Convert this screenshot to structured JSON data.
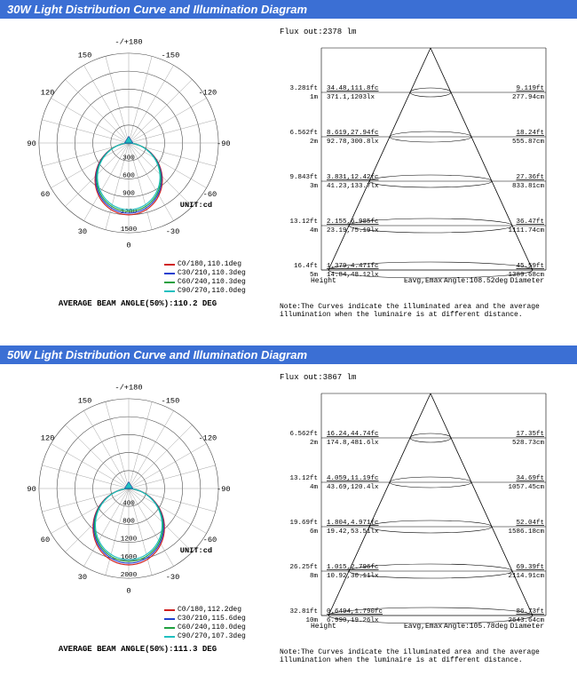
{
  "sections": [
    {
      "title": "30W Light Distribution Curve and Illumination Diagram",
      "polar": {
        "unit_label": "UNIT:cd",
        "top_label": "-/+180",
        "angle_labels": [
          "150",
          "-150",
          "120",
          "-120",
          "90",
          "-90",
          "60",
          "-60",
          "30",
          "-30",
          "0"
        ],
        "radial_ticks": [
          "300",
          "600",
          "900",
          "1200",
          "1500"
        ],
        "radial_max": 1500,
        "legend": [
          {
            "color": "#d02020",
            "label": "C0/180,110.1deg"
          },
          {
            "color": "#2040d0",
            "label": "C30/210,110.3deg"
          },
          {
            "color": "#20a040",
            "label": "C60/240,110.3deg"
          },
          {
            "color": "#20c0c0",
            "label": "C90/270,110.0deg"
          }
        ],
        "beam_angle": "AVERAGE BEAM ANGLE(50%):110.2 DEG",
        "lobe_peak": 1200,
        "lobe_width_deg": 110,
        "grid_color": "#888",
        "circle_color": "#444"
      },
      "illum": {
        "flux": "Flux out:2378 lm",
        "angle_label": "Angle:108.52deg",
        "axis_h": "Height",
        "axis_e": "Eavg,Emax",
        "axis_d": "Diameter",
        "rows": [
          {
            "hft": "3.281ft",
            "hm": "1m",
            "fc": "34.48,111.8fc",
            "lx": "371.1,1203lx",
            "dft": "9.119ft",
            "dcm": "277.94cm",
            "rel": 0.2
          },
          {
            "hft": "6.562ft",
            "hm": "2m",
            "fc": "8.619,27.94fc",
            "lx": "92.78,300.8lx",
            "dft": "18.24ft",
            "dcm": "555.87cm",
            "rel": 0.4
          },
          {
            "hft": "9.843ft",
            "hm": "3m",
            "fc": "3.831,12.42fc",
            "lx": "41.23,133.7lx",
            "dft": "27.36ft",
            "dcm": "833.81cm",
            "rel": 0.6
          },
          {
            "hft": "13.12ft",
            "hm": "4m",
            "fc": "2.155,6.985fc",
            "lx": "23.19,75.19lx",
            "dft": "36.47ft",
            "dcm": "1111.74cm",
            "rel": 0.8
          },
          {
            "hft": "16.4ft",
            "hm": "5m",
            "fc": "1.379,4.471fc",
            "lx": "14.84,48.12lx",
            "dft": "45.59ft",
            "dcm": "1389.68cm",
            "rel": 1.0
          }
        ],
        "note": "Note:The Curves indicate the illuminated area and the average illumination when the luminaire is at different distance."
      }
    },
    {
      "title": "50W Light Distribution Curve and Illumination Diagram",
      "polar": {
        "unit_label": "UNIT:cd",
        "top_label": "-/+180",
        "angle_labels": [
          "150",
          "-150",
          "120",
          "-120",
          "90",
          "-90",
          "60",
          "-60",
          "30",
          "-30",
          "0"
        ],
        "radial_ticks": [
          "400",
          "800",
          "1200",
          "1600",
          "2000"
        ],
        "radial_max": 2000,
        "legend": [
          {
            "color": "#d02020",
            "label": "C0/180,112.2deg"
          },
          {
            "color": "#2040d0",
            "label": "C30/210,115.6deg"
          },
          {
            "color": "#20a040",
            "label": "C60/240,110.0deg"
          },
          {
            "color": "#20c0c0",
            "label": "C90/270,107.3deg"
          }
        ],
        "beam_angle": "AVERAGE BEAM ANGLE(50%):111.3 DEG",
        "lobe_peak": 1700,
        "lobe_width_deg": 111,
        "grid_color": "#888",
        "circle_color": "#444"
      },
      "illum": {
        "flux": "Flux out:3867 lm",
        "angle_label": "Angle:105.78deg",
        "axis_h": "Height",
        "axis_e": "Eavg,Emax",
        "axis_d": "Diameter",
        "rows": [
          {
            "hft": "6.562ft",
            "hm": "2m",
            "fc": "16.24,44.74fc",
            "lx": "174.8,481.6lx",
            "dft": "17.35ft",
            "dcm": "528.73cm",
            "rel": 0.2
          },
          {
            "hft": "13.12ft",
            "hm": "4m",
            "fc": "4.059,11.19fc",
            "lx": "43.69,120.4lx",
            "dft": "34.69ft",
            "dcm": "1057.45cm",
            "rel": 0.4
          },
          {
            "hft": "19.69ft",
            "hm": "6m",
            "fc": "1.804,4.971fc",
            "lx": "19.42,53.51lx",
            "dft": "52.04ft",
            "dcm": "1586.18cm",
            "rel": 0.6
          },
          {
            "hft": "26.25ft",
            "hm": "8m",
            "fc": "1.015,2.796fc",
            "lx": "10.92,30.11lx",
            "dft": "69.39ft",
            "dcm": "2114.91cm",
            "rel": 0.8
          },
          {
            "hft": "32.81ft",
            "hm": "10m",
            "fc": "0.6494,1.790fc",
            "lx": "6.990,19.26lx",
            "dft": "86.73ft",
            "dcm": "2643.64cm",
            "rel": 1.0
          }
        ],
        "note": "Note:The Curves indicate the illuminated area and the average illumination when the luminaire is at different distance."
      }
    }
  ]
}
